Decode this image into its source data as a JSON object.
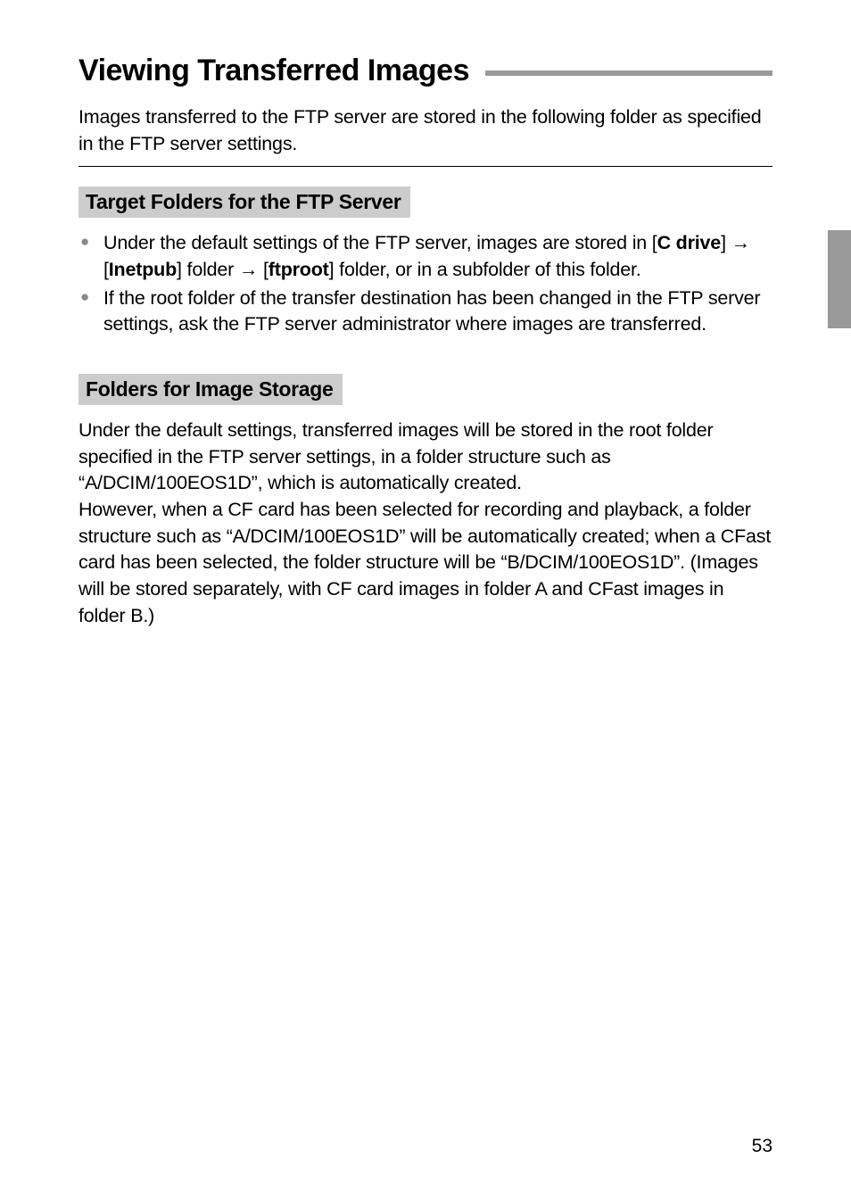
{
  "title": "Viewing Transferred Images",
  "intro": "Images transferred to the FTP server are stored in the following folder as specified in the FTP server settings.",
  "section1": {
    "heading": "Target Folders for the FTP Server",
    "bullet1_pre": "Under the default settings of the FTP server, images are stored in [",
    "bullet1_b1": "C drive",
    "bullet1_mid1": "] ",
    "arrow": "→",
    "bullet1_mid2": " [",
    "bullet1_b2": "Inetpub",
    "bullet1_mid3": "] folder ",
    "bullet1_mid4": " [",
    "bullet1_b3": "ftproot",
    "bullet1_post": "] folder, or in a subfolder of this folder.",
    "bullet2": "If the root folder of the transfer destination has been changed in the FTP server settings, ask the FTP server administrator where images are transferred."
  },
  "section2": {
    "heading": "Folders for Image Storage",
    "para1": "Under the default settings, transferred images will be stored in the root folder specified in the FTP server settings, in a folder structure such as “A/DCIM/100EOS1D”, which is automatically created.",
    "para2": "However, when a CF card has been selected for recording and playback, a folder structure such as “A/DCIM/100EOS1D” will be automatically created; when a CFast card has been selected, the folder structure will be “B/DCIM/100EOS1D”. (Images will be stored separately, with CF card images in folder A and CFast images in folder B.)"
  },
  "pageNumber": "53"
}
